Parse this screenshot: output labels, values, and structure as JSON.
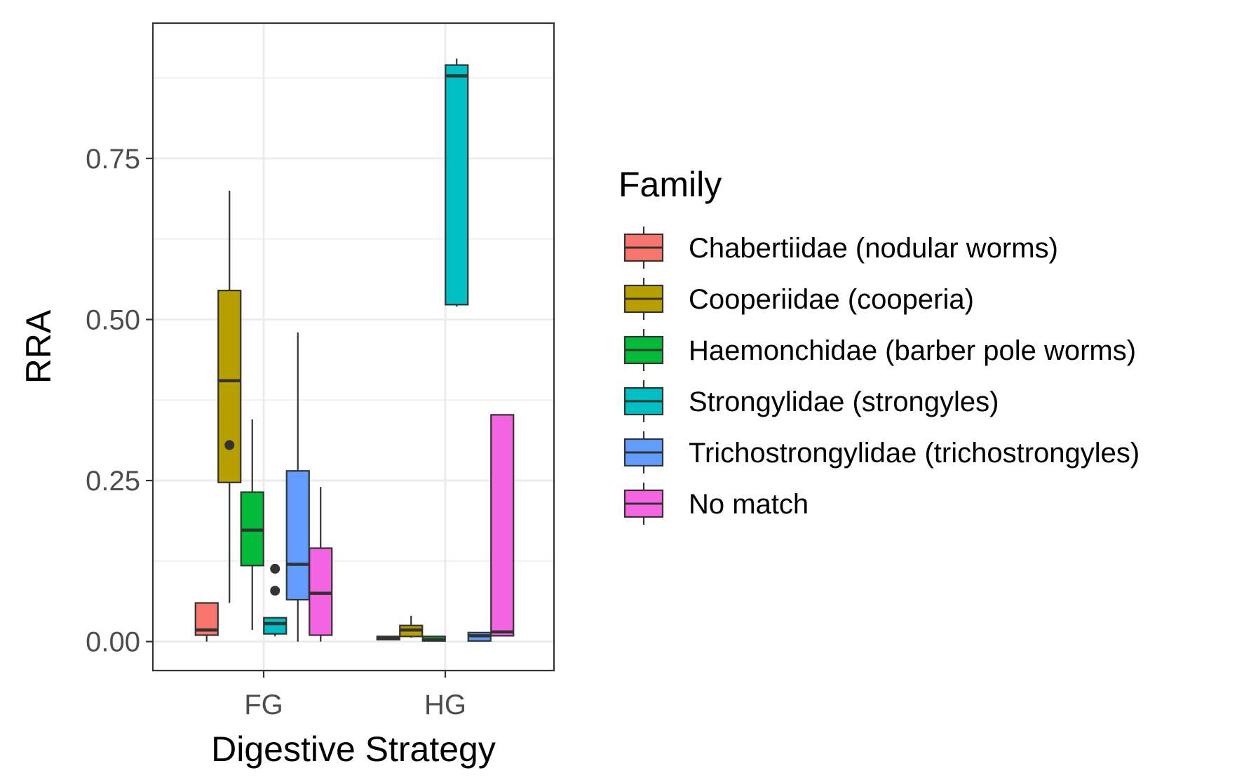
{
  "chart_data": {
    "type": "boxplot",
    "xlabel": "Digestive Strategy",
    "ylabel": "RRA",
    "categories": [
      "FG",
      "HG"
    ],
    "ylim": [
      -0.045,
      0.96
    ],
    "yticks": [
      0.0,
      0.25,
      0.5,
      0.75
    ],
    "ytick_labels": [
      "0.00",
      "0.25",
      "0.50",
      "0.75"
    ],
    "grid": true,
    "legend": {
      "title": "Family",
      "placement": "right"
    },
    "series": [
      {
        "name": "Chabertiidae (nodular worms)",
        "color": "#F8766D",
        "boxes": [
          {
            "category": "FG",
            "min": 0.0,
            "q1": 0.01,
            "median": 0.018,
            "q3": 0.06,
            "max": 0.06,
            "outliers": []
          },
          {
            "category": "HG",
            "min": 0.003,
            "q1": 0.003,
            "median": 0.006,
            "q3": 0.008,
            "max": 0.008,
            "outliers": []
          }
        ]
      },
      {
        "name": "Cooperiidae (cooperia)",
        "color": "#B79F00",
        "boxes": [
          {
            "category": "FG",
            "min": 0.06,
            "q1": 0.247,
            "median": 0.405,
            "q3": 0.545,
            "max": 0.7,
            "outliers": [
              0.305
            ]
          },
          {
            "category": "HG",
            "min": 0.006,
            "q1": 0.008,
            "median": 0.018,
            "q3": 0.025,
            "max": 0.04,
            "outliers": []
          }
        ]
      },
      {
        "name": "Haemonchidae (barber pole worms)",
        "color": "#00BA38",
        "boxes": [
          {
            "category": "FG",
            "min": 0.018,
            "q1": 0.118,
            "median": 0.173,
            "q3": 0.232,
            "max": 0.345,
            "outliers": []
          },
          {
            "category": "HG",
            "min": 0.0,
            "q1": 0.001,
            "median": 0.003,
            "q3": 0.008,
            "max": 0.008,
            "outliers": []
          }
        ]
      },
      {
        "name": "Strongylidae (strongyles)",
        "color": "#00BFC4",
        "boxes": [
          {
            "category": "FG",
            "min": 0.008,
            "q1": 0.012,
            "median": 0.028,
            "q3": 0.037,
            "max": 0.037,
            "outliers": [
              0.113,
              0.079
            ]
          },
          {
            "category": "HG",
            "min": 0.52,
            "q1": 0.523,
            "median": 0.878,
            "q3": 0.895,
            "max": 0.905,
            "outliers": []
          }
        ]
      },
      {
        "name": "Trichostrongylidae (trichostrongyles)",
        "color": "#619CFF",
        "boxes": [
          {
            "category": "FG",
            "min": 0.0,
            "q1": 0.065,
            "median": 0.12,
            "q3": 0.265,
            "max": 0.48,
            "outliers": []
          },
          {
            "category": "HG",
            "min": 0.0,
            "q1": 0.001,
            "median": 0.009,
            "q3": 0.014,
            "max": 0.014,
            "outliers": []
          }
        ]
      },
      {
        "name": "No match",
        "color": "#F564E3",
        "boxes": [
          {
            "category": "FG",
            "min": 0.0,
            "q1": 0.01,
            "median": 0.075,
            "q3": 0.145,
            "max": 0.24,
            "outliers": []
          },
          {
            "category": "HG",
            "min": 0.009,
            "q1": 0.009,
            "median": 0.015,
            "q3": 0.352,
            "max": 0.352,
            "outliers": []
          }
        ]
      }
    ]
  }
}
